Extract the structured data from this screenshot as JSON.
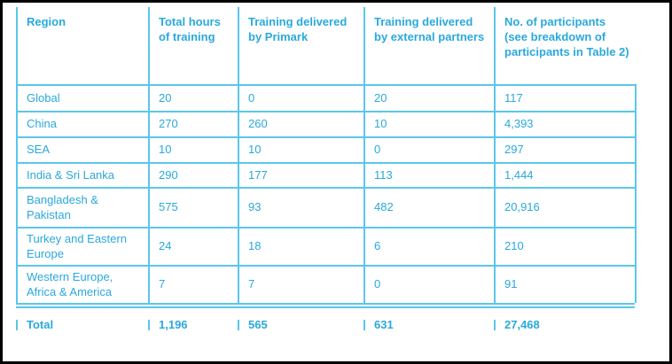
{
  "table": {
    "header": [
      "Region",
      "Total hours of training",
      "Training delivered by Primark",
      "Training delivered by external partners",
      "No. of participants (see breakdown of participants in Table 2)"
    ],
    "rows": [
      [
        "Global",
        "20",
        "0",
        "20",
        "117"
      ],
      [
        "China",
        "270",
        "260",
        "10",
        "4,393"
      ],
      [
        "SEA",
        "10",
        "10",
        "0",
        "297"
      ],
      [
        "India & Sri Lanka",
        "290",
        "177",
        "113",
        "1,444"
      ],
      [
        "Bangladesh & Pakistan",
        "575",
        "93",
        "482",
        "20,916"
      ],
      [
        "Turkey and Eastern Europe",
        "24",
        "18",
        "6",
        "210"
      ],
      [
        "Western Europe, Africa & America",
        "7",
        "7",
        "0",
        "91"
      ]
    ],
    "total": [
      "Total",
      "1,196",
      "565",
      "631",
      "27,468"
    ]
  }
}
